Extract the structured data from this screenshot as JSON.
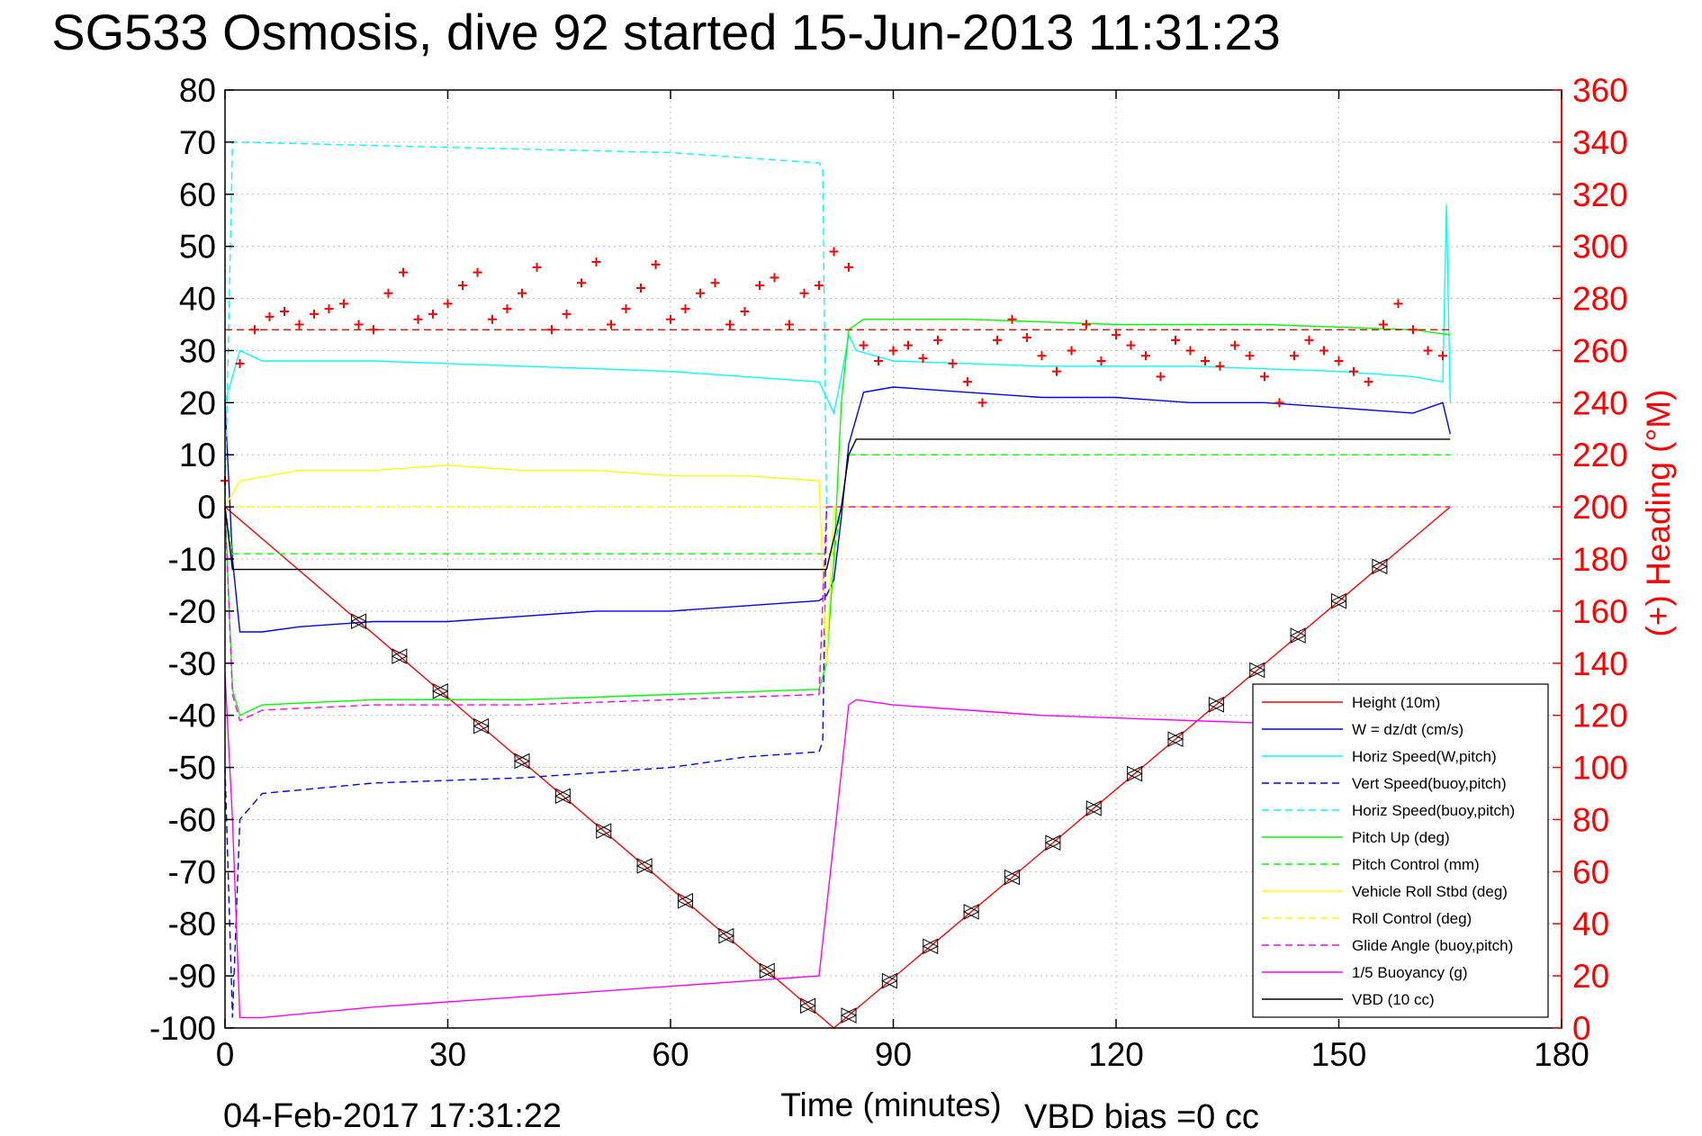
{
  "chart_data": {
    "type": "line",
    "title": "SG533 Osmosis, dive 92 started 15-Jun-2013 11:31:23",
    "xlabel": "Time (minutes)",
    "ylabel_left": "",
    "ylabel_right": "(+) Heading (°M)",
    "xlim": [
      0,
      180
    ],
    "ylim_left": [
      -100,
      80
    ],
    "ylim_right": [
      0,
      360
    ],
    "x_ticks": [
      "0",
      "30",
      "60",
      "90",
      "120",
      "150",
      "180"
    ],
    "y_left_ticks": [
      "80",
      "70",
      "60",
      "50",
      "40",
      "30",
      "20",
      "10",
      "0",
      "-10",
      "-20",
      "-30",
      "-40",
      "-50",
      "-60",
      "-70",
      "-80",
      "-90",
      "-100"
    ],
    "y_right_ticks": [
      "360",
      "340",
      "320",
      "300",
      "280",
      "260",
      "240",
      "220",
      "200",
      "180",
      "160",
      "140",
      "120",
      "100",
      "80",
      "60",
      "40",
      "20",
      "0"
    ],
    "grid": true,
    "legend_position": "bottom-right",
    "series": [
      {
        "name": "Height (10m)",
        "color": "#ff0000",
        "style": "solid",
        "x": [
          0,
          82,
          165
        ],
        "y": [
          0,
          -100,
          0
        ]
      },
      {
        "name": "W = dz/dt (cm/s)",
        "color": "#0000ff",
        "style": "solid",
        "x": [
          0,
          1,
          2,
          5,
          10,
          20,
          30,
          40,
          50,
          60,
          70,
          80,
          81,
          82,
          83,
          84,
          86,
          90,
          100,
          110,
          120,
          130,
          140,
          150,
          160,
          164,
          165
        ],
        "y": [
          20,
          -10,
          -24,
          -24,
          -23,
          -22,
          -22,
          -21,
          -20,
          -20,
          -19,
          -18,
          -17,
          -14,
          -2,
          12,
          22,
          23,
          22,
          21,
          21,
          20,
          20,
          19,
          18,
          20,
          14
        ]
      },
      {
        "name": "Horiz Speed(W,pitch)",
        "color": "#00ffff",
        "style": "solid",
        "x": [
          0,
          1,
          2,
          5,
          20,
          40,
          60,
          70,
          80,
          81,
          82,
          83,
          84,
          85,
          90,
          110,
          130,
          150,
          160,
          164,
          164.5,
          165
        ],
        "y": [
          20,
          25,
          30,
          28,
          28,
          27,
          26,
          25,
          24,
          21,
          18,
          25,
          33,
          30,
          28,
          27,
          27,
          26,
          25,
          24,
          58,
          20
        ]
      },
      {
        "name": "Vert Speed(buoy,pitch)",
        "color": "#0000ff",
        "style": "dashed",
        "x": [
          0,
          1,
          2,
          5,
          20,
          40,
          60,
          70,
          80,
          80.5,
          81,
          165
        ],
        "y": [
          -50,
          -98,
          -60,
          -55,
          -53,
          -52,
          -50,
          -48,
          -47,
          -45,
          0,
          0
        ]
      },
      {
        "name": "Horiz Speed(buoy,pitch)",
        "color": "#00ffff",
        "style": "dashed",
        "x": [
          0,
          1,
          2,
          30,
          60,
          80,
          80.5,
          81,
          165
        ],
        "y": [
          0,
          70,
          70,
          69,
          68,
          66,
          65,
          0,
          0
        ]
      },
      {
        "name": "Pitch Up (deg)",
        "color": "#00ff00",
        "style": "solid",
        "x": [
          0,
          1,
          2,
          5,
          20,
          40,
          60,
          80,
          81,
          82,
          83,
          84,
          86,
          100,
          120,
          140,
          160,
          165
        ],
        "y": [
          0,
          -35,
          -40,
          -38,
          -37,
          -37,
          -36,
          -35,
          -30,
          -10,
          20,
          34,
          36,
          36,
          35,
          35,
          34,
          33
        ]
      },
      {
        "name": "Pitch Control (mm)",
        "color": "#00ff00",
        "style": "dashed",
        "x": [
          0,
          1,
          80,
          81,
          82,
          83,
          84,
          165
        ],
        "y": [
          0,
          -9,
          -9,
          -9,
          -9,
          0,
          10,
          10
        ]
      },
      {
        "name": "Vehicle Roll Stbd (deg)",
        "color": "#ffff00",
        "style": "solid",
        "x": [
          0,
          2,
          10,
          20,
          30,
          40,
          50,
          60,
          70,
          80,
          81,
          82,
          90,
          120,
          150,
          165
        ],
        "y": [
          0,
          5,
          7,
          7,
          8,
          7,
          7,
          6,
          6,
          5,
          -30,
          0,
          0,
          0,
          0,
          0
        ]
      },
      {
        "name": "Roll Control (deg)",
        "color": "#ffff00",
        "style": "dashed",
        "x": [
          0,
          1,
          81,
          82,
          165
        ],
        "y": [
          0,
          0,
          0,
          0,
          0
        ]
      },
      {
        "name": "Glide Angle (buoy,pitch)",
        "color": "#ff00ff",
        "style": "dashed",
        "x": [
          0,
          1,
          2,
          5,
          20,
          40,
          60,
          80,
          81,
          165
        ],
        "y": [
          0,
          -36,
          -41,
          -39,
          -38,
          -38,
          -37,
          -36,
          0,
          0
        ]
      },
      {
        "name": "1/5 Buoyancy (g)",
        "color": "#ff00ff",
        "style": "solid",
        "x": [
          0,
          1,
          2,
          5,
          20,
          40,
          60,
          70,
          80,
          84,
          85,
          90,
          110,
          130,
          150,
          165
        ],
        "y": [
          -32,
          -60,
          -98,
          -98,
          -96,
          -94,
          -92,
          -91,
          -90,
          -38,
          -37,
          -38,
          -40,
          -41,
          -42,
          -42
        ]
      },
      {
        "name": "VBD (10 cc)",
        "color": "#000000",
        "style": "solid",
        "x": [
          0,
          1,
          2,
          80,
          81,
          83,
          84,
          85,
          165
        ],
        "y": [
          0,
          -12,
          -12,
          -12,
          -12,
          0,
          10,
          13,
          13
        ]
      }
    ],
    "heading": {
      "name": "(+) Heading",
      "color": "#ff0000",
      "marker": "+",
      "axis": "right",
      "mean": 268,
      "x": [
        0,
        2,
        4,
        6,
        8,
        10,
        12,
        14,
        16,
        18,
        20,
        22,
        24,
        26,
        28,
        30,
        32,
        34,
        36,
        38,
        40,
        42,
        44,
        46,
        48,
        50,
        52,
        54,
        56,
        58,
        60,
        62,
        64,
        66,
        68,
        70,
        72,
        74,
        76,
        78,
        80,
        82,
        84,
        86,
        88,
        90,
        92,
        94,
        96,
        98,
        100,
        102,
        104,
        106,
        108,
        110,
        112,
        114,
        116,
        118,
        120,
        122,
        124,
        126,
        128,
        130,
        132,
        134,
        136,
        138,
        140,
        142,
        144,
        146,
        148,
        150,
        152,
        154,
        156,
        158,
        160,
        162,
        164
      ],
      "y": [
        210,
        255,
        268,
        273,
        275,
        270,
        274,
        276,
        278,
        270,
        268,
        282,
        290,
        272,
        274,
        278,
        285,
        290,
        272,
        276,
        282,
        292,
        268,
        274,
        286,
        294,
        270,
        276,
        284,
        293,
        272,
        276,
        282,
        286,
        270,
        275,
        285,
        288,
        270,
        282,
        285,
        298,
        292,
        262,
        256,
        260,
        262,
        257,
        264,
        255,
        248,
        240,
        264,
        272,
        265,
        258,
        252,
        260,
        270,
        256,
        266,
        262,
        258,
        250,
        264,
        260,
        256,
        254,
        262,
        258,
        250,
        240,
        258,
        264,
        260,
        256,
        252,
        248,
        270,
        278,
        268,
        260,
        258
      ]
    },
    "legend": [
      "Height (10m)",
      "W = dz/dt (cm/s)",
      "Horiz Speed(W,pitch)",
      "Vert Speed(buoy,pitch)",
      "Horiz Speed(buoy,pitch)",
      "Pitch Up (deg)",
      "Pitch Control (mm)",
      "Vehicle Roll Stbd (deg)",
      "Roll Control (deg)",
      "Glide Angle (buoy,pitch)",
      "1/5 Buoyancy (g)",
      "VBD (10 cc)"
    ]
  },
  "footer": {
    "timestamp": "04-Feb-2017 17:31:22",
    "vbd_bias": "VBD bias =0 cc"
  }
}
